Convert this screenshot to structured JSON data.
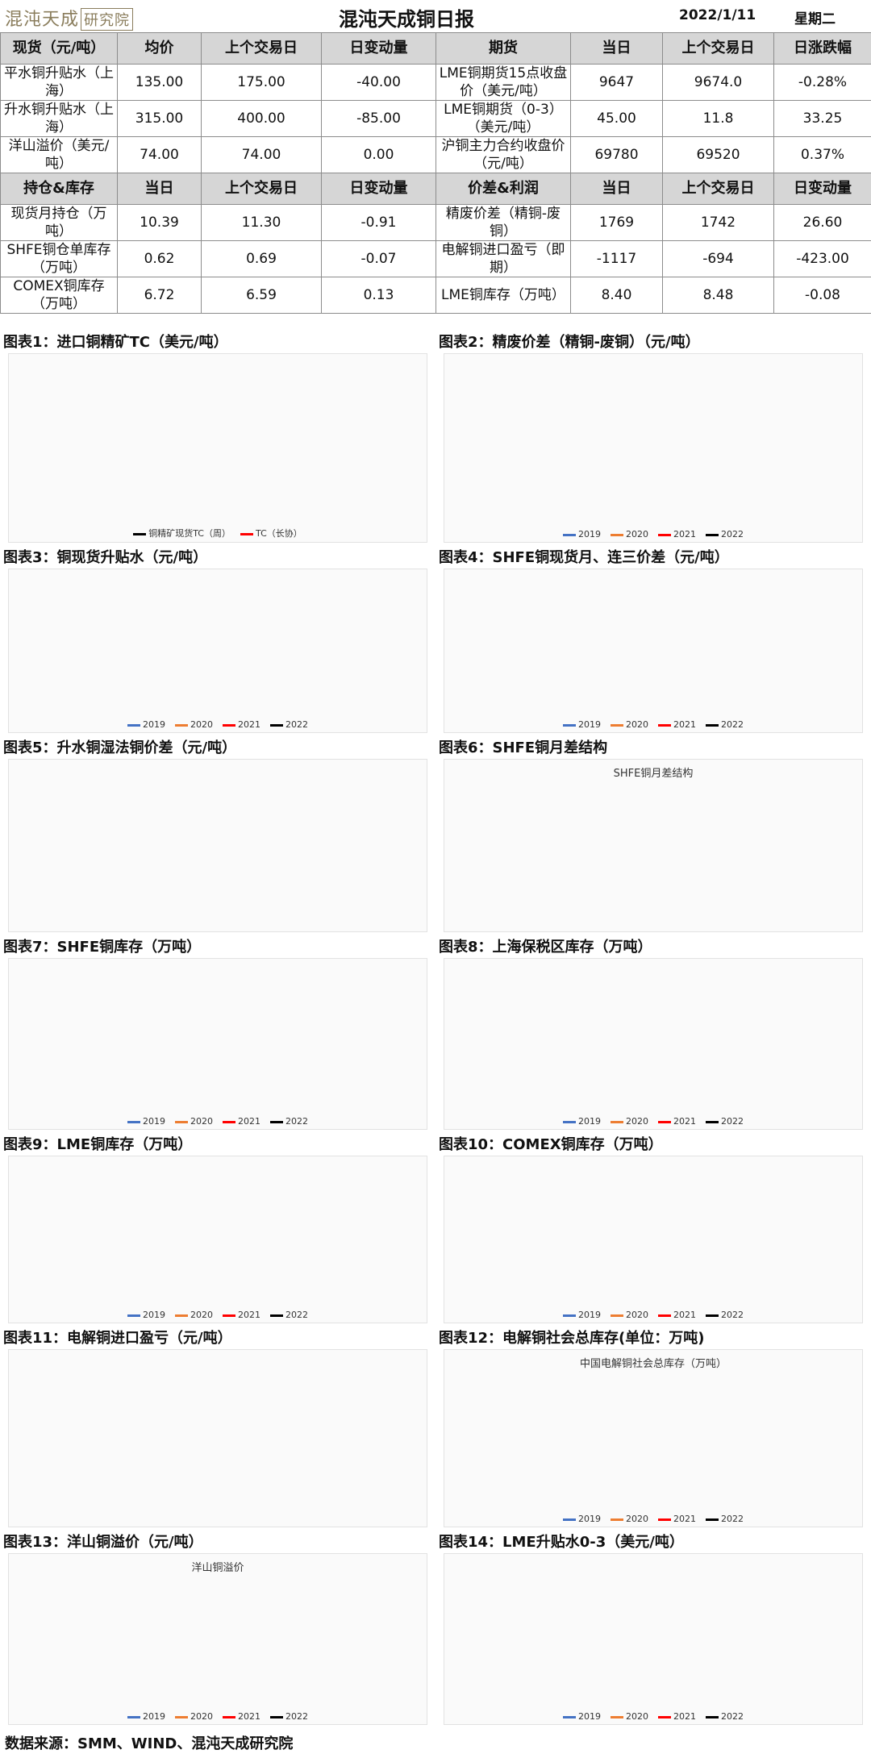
{
  "header": {
    "logo_text": "混沌天成",
    "logo_tag": "研究院",
    "title": "混沌天成铜日报",
    "date": "2022/1/11",
    "weekday": "星期二"
  },
  "table": {
    "sections": [
      {
        "header": [
          "现货（元/吨）",
          "均价",
          "上个交易日",
          "日变动量",
          "期货",
          "当日",
          "上个交易日",
          "日涨跌幅"
        ],
        "rows": [
          [
            "平水铜升贴水（上海）",
            "135.00",
            "175.00",
            "-40.00",
            "LME铜期货15点收盘价（美元/吨）",
            "9647",
            "9674.0",
            "-0.28%"
          ],
          [
            "升水铜升贴水（上海）",
            "315.00",
            "400.00",
            "-85.00",
            "LME铜期货（0-3）（美元/吨）",
            "45.00",
            "11.8",
            "33.25"
          ],
          [
            "洋山溢价（美元/吨）",
            "74.00",
            "74.00",
            "0.00",
            "沪铜主力合约收盘价（元/吨）",
            "69780",
            "69520",
            "0.37%"
          ]
        ]
      },
      {
        "header": [
          "持仓&库存",
          "当日",
          "上个交易日",
          "日变动量",
          "价差&利润",
          "当日",
          "上个交易日",
          "日变动量"
        ],
        "rows": [
          [
            "现货月持仓（万吨）",
            "10.39",
            "11.30",
            "-0.91",
            "精废价差（精铜-废铜）",
            "1769",
            "1742",
            "26.60"
          ],
          [
            "SHFE铜仓单库存（万吨）",
            "0.62",
            "0.69",
            "-0.07",
            "电解铜进口盈亏（即期）",
            "-1117",
            "-694",
            "-423.00"
          ],
          [
            "COMEX铜库存（万吨）",
            "6.72",
            "6.59",
            "0.13",
            "LME铜库存（万吨）",
            "8.40",
            "8.48",
            "-0.08"
          ]
        ]
      }
    ]
  },
  "charts": [
    {
      "caption": "图表1：进口铜精矿TC（美元/吨）",
      "inner_title": "",
      "legend": [
        {
          "label": "铜精矿现货TC（周）",
          "color": "#000000"
        },
        {
          "label": "TC（长协）",
          "color": "#ff0000"
        }
      ]
    },
    {
      "caption": "图表2：精废价差（精铜-废铜）（元/吨）",
      "inner_title": "",
      "legend": [
        {
          "label": "2019",
          "color": "#4472c4"
        },
        {
          "label": "2020",
          "color": "#ed7d31"
        },
        {
          "label": "2021",
          "color": "#ff0000"
        },
        {
          "label": "2022",
          "color": "#000000"
        }
      ]
    },
    {
      "caption": "图表3：铜现货升贴水（元/吨）",
      "inner_title": "",
      "legend": [
        {
          "label": "2019",
          "color": "#4472c4"
        },
        {
          "label": "2020",
          "color": "#ed7d31"
        },
        {
          "label": "2021",
          "color": "#ff0000"
        },
        {
          "label": "2022",
          "color": "#000000"
        }
      ]
    },
    {
      "caption": "图表4：SHFE铜现货月、连三价差（元/吨）",
      "inner_title": "",
      "legend": [
        {
          "label": "2019",
          "color": "#4472c4"
        },
        {
          "label": "2020",
          "color": "#ed7d31"
        },
        {
          "label": "2021",
          "color": "#ff0000"
        },
        {
          "label": "2022",
          "color": "#000000"
        }
      ]
    },
    {
      "caption": "图表5：升水铜湿法铜价差（元/吨）",
      "inner_title": "",
      "legend": []
    },
    {
      "caption": "图表6：SHFE铜月差结构",
      "inner_title": "SHFE铜月差结构",
      "legend": []
    },
    {
      "caption": "图表7：SHFE铜库存（万吨）",
      "inner_title": "",
      "legend": [
        {
          "label": "2019",
          "color": "#4472c4"
        },
        {
          "label": "2020",
          "color": "#ed7d31"
        },
        {
          "label": "2021",
          "color": "#ff0000"
        },
        {
          "label": "2022",
          "color": "#000000"
        }
      ]
    },
    {
      "caption": "图表8：上海保税区库存（万吨）",
      "inner_title": "",
      "legend": [
        {
          "label": "2019",
          "color": "#4472c4"
        },
        {
          "label": "2020",
          "color": "#ed7d31"
        },
        {
          "label": "2021",
          "color": "#ff0000"
        },
        {
          "label": "2022",
          "color": "#000000"
        }
      ]
    },
    {
      "caption": "图表9：LME铜库存（万吨）",
      "inner_title": "",
      "legend": [
        {
          "label": "2019",
          "color": "#4472c4"
        },
        {
          "label": "2020",
          "color": "#ed7d31"
        },
        {
          "label": "2021",
          "color": "#ff0000"
        },
        {
          "label": "2022",
          "color": "#000000"
        }
      ]
    },
    {
      "caption": "图表10：COMEX铜库存（万吨）",
      "inner_title": "",
      "legend": [
        {
          "label": "2019",
          "color": "#4472c4"
        },
        {
          "label": "2020",
          "color": "#ed7d31"
        },
        {
          "label": "2021",
          "color": "#ff0000"
        },
        {
          "label": "2022",
          "color": "#000000"
        }
      ]
    },
    {
      "caption": "图表11：电解铜进口盈亏（元/吨）",
      "inner_title": "",
      "legend": []
    },
    {
      "caption": "图表12：电解铜社会总库存(单位：万吨)",
      "inner_title": "中国电解铜社会总库存（万吨）",
      "legend": [
        {
          "label": "2019",
          "color": "#4472c4"
        },
        {
          "label": "2020",
          "color": "#ed7d31"
        },
        {
          "label": "2021",
          "color": "#ff0000"
        },
        {
          "label": "2022",
          "color": "#000000"
        }
      ]
    },
    {
      "caption": "图表13：洋山铜溢价（元/吨）",
      "inner_title": "洋山铜溢价",
      "legend": [
        {
          "label": "2019",
          "color": "#4472c4"
        },
        {
          "label": "2020",
          "color": "#ed7d31"
        },
        {
          "label": "2021",
          "color": "#ff0000"
        },
        {
          "label": "2022",
          "color": "#000000"
        }
      ]
    },
    {
      "caption": "图表14：LME升贴水0-3（美元/吨）",
      "inner_title": "",
      "legend": [
        {
          "label": "2019",
          "color": "#4472c4"
        },
        {
          "label": "2020",
          "color": "#ed7d31"
        },
        {
          "label": "2021",
          "color": "#ff0000"
        },
        {
          "label": "2022",
          "color": "#000000"
        }
      ]
    }
  ],
  "footer": {
    "source": "数据来源：SMM、WIND、混沌天成研究院"
  }
}
